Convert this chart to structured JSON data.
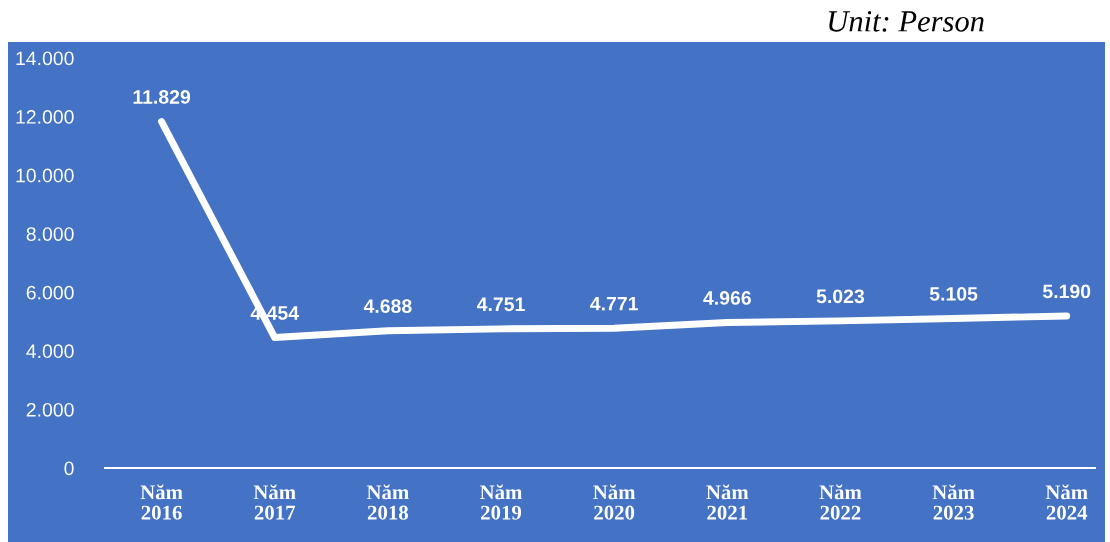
{
  "chart_data": {
    "type": "line",
    "annotations": [
      "Unit: Person"
    ],
    "categories": [
      "Năm\n2016",
      "Năm\n2017",
      "Năm\n2018",
      "Năm\n2019",
      "Năm\n2020",
      "Năm\n2021",
      "Năm\n2022",
      "Năm\n2023",
      "Năm\n2024"
    ],
    "series": [
      {
        "color": "#ffffff",
        "values": [
          11829,
          4454,
          4688,
          4751,
          4771,
          4966,
          5023,
          5105,
          5190
        ],
        "value_labels": [
          "11.829",
          "4.454",
          "4.688",
          "4.751",
          "4.771",
          "4.966",
          "5.023",
          "5.105",
          "5.190"
        ]
      }
    ],
    "ylim": [
      0,
      14000
    ],
    "yticks": [
      {
        "value": 0,
        "label": "0"
      },
      {
        "value": 2000,
        "label": "2.000"
      },
      {
        "value": 4000,
        "label": "4.000"
      },
      {
        "value": 6000,
        "label": "6.000"
      },
      {
        "value": 8000,
        "label": "8.000"
      },
      {
        "value": 10000,
        "label": "10.000"
      },
      {
        "value": 12000,
        "label": "12.000"
      },
      {
        "value": 14000,
        "label": "14.000"
      }
    ],
    "grid": false,
    "legend": false,
    "marker": "none",
    "line_style": "solid"
  }
}
